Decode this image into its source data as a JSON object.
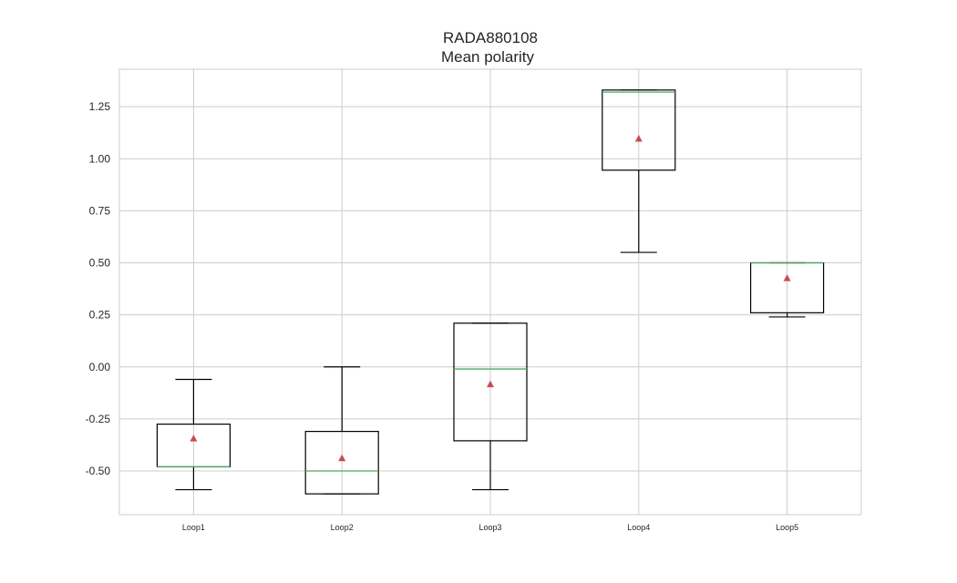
{
  "chart_data": {
    "type": "box",
    "title": "RADA880108",
    "subtitle": "Mean polarity",
    "xlabel": "",
    "ylabel": "",
    "ylim": [
      -0.71,
      1.43
    ],
    "yticks": [
      "-0.50",
      "-0.25",
      "0.00",
      "0.25",
      "0.50",
      "0.75",
      "1.00",
      "1.25"
    ],
    "grid": true,
    "categories": [
      "Loop1",
      "Loop2",
      "Loop3",
      "Loop4",
      "Loop5"
    ],
    "boxes": [
      {
        "label": "Loop1",
        "whisker_low": -0.59,
        "q1": -0.48,
        "median": -0.48,
        "q3": -0.275,
        "whisker_high": -0.06,
        "mean": -0.345
      },
      {
        "label": "Loop2",
        "whisker_low": -0.61,
        "q1": -0.61,
        "median": -0.5,
        "q3": -0.31,
        "whisker_high": 0.0,
        "mean": -0.44
      },
      {
        "label": "Loop3",
        "whisker_low": -0.59,
        "q1": -0.355,
        "median": -0.01,
        "q3": 0.21,
        "whisker_high": 0.21,
        "mean": -0.085
      },
      {
        "label": "Loop4",
        "whisker_low": 0.55,
        "q1": 0.945,
        "median": 1.32,
        "q3": 1.33,
        "whisker_high": 1.33,
        "mean": 1.095
      },
      {
        "label": "Loop5",
        "whisker_low": 0.24,
        "q1": 0.26,
        "median": 0.5,
        "q3": 0.5,
        "whisker_high": 0.5,
        "mean": 0.425
      }
    ],
    "colors": {
      "box": "#000000",
      "median": "#55a868",
      "mean": "#c44e52",
      "grid": "#cccccc",
      "frame": "#cccccc"
    }
  }
}
